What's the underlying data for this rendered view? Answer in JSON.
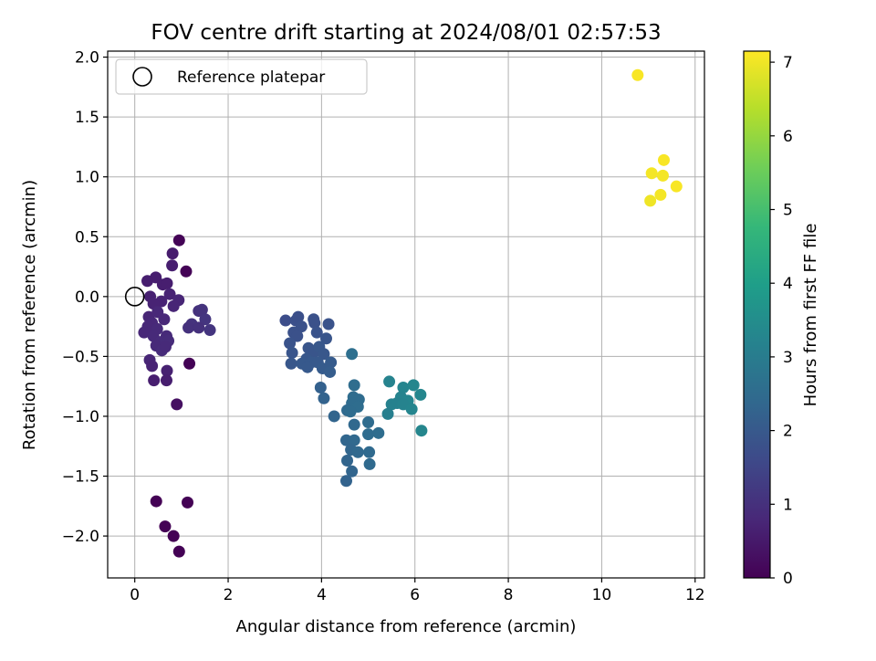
{
  "chart_data": {
    "type": "scatter",
    "title": "FOV centre drift starting at 2024/08/01 02:57:53",
    "xlabel": "Angular distance from reference (arcmin)",
    "ylabel": "Rotation from reference (arcmin)",
    "xlim": [
      -0.58,
      12.2
    ],
    "ylim": [
      -2.35,
      2.05
    ],
    "xticks": [
      0,
      2,
      4,
      6,
      8,
      10,
      12
    ],
    "xtick_labels": [
      "0",
      "2",
      "4",
      "6",
      "8",
      "10",
      "12"
    ],
    "yticks": [
      -2.0,
      -1.5,
      -1.0,
      -0.5,
      0.0,
      0.5,
      1.0,
      1.5,
      2.0
    ],
    "ytick_labels": [
      "−2.0",
      "−1.5",
      "−1.0",
      "−0.5",
      "0.0",
      "0.5",
      "1.0",
      "1.5",
      "2.0"
    ],
    "grid": true,
    "legend": {
      "placement": "upper-left",
      "entries": [
        "Reference platepar"
      ]
    },
    "reference_point": {
      "name": "Reference platepar",
      "x": 0.0,
      "y": 0.0,
      "marker": "open-circle"
    },
    "colorbar": {
      "label": "Hours from first FF file",
      "range": [
        0,
        7.15
      ],
      "ticks": [
        0,
        1,
        2,
        3,
        4,
        5,
        6,
        7
      ],
      "tick_labels": [
        "0",
        "1",
        "2",
        "3",
        "4",
        "5",
        "6",
        "7"
      ],
      "colormap": "viridis",
      "colormap_stops": [
        "#440154",
        "#482878",
        "#3e4989",
        "#31688e",
        "#26828e",
        "#1f9e89",
        "#35b779",
        "#6ece58",
        "#b5de2b",
        "#fde725"
      ]
    },
    "series": [
      {
        "points": [
          {
            "x": 0.95,
            "y": 0.47,
            "h": 0.05
          },
          {
            "x": 1.1,
            "y": 0.21,
            "h": 0.05
          },
          {
            "x": 1.17,
            "y": -0.56,
            "h": 0.05
          },
          {
            "x": 0.46,
            "y": -1.71,
            "h": 0.02
          },
          {
            "x": 1.13,
            "y": -1.72,
            "h": 0.02
          },
          {
            "x": 0.65,
            "y": -1.92,
            "h": 0.03
          },
          {
            "x": 0.83,
            "y": -2.0,
            "h": 0.03
          },
          {
            "x": 0.95,
            "y": -2.13,
            "h": 0.02
          },
          {
            "x": 0.9,
            "y": -0.9,
            "h": 0.3
          },
          {
            "x": 0.81,
            "y": 0.36,
            "h": 0.55
          },
          {
            "x": 0.8,
            "y": 0.26,
            "h": 0.6
          },
          {
            "x": 0.45,
            "y": 0.16,
            "h": 0.6
          },
          {
            "x": 0.27,
            "y": 0.13,
            "h": 0.6
          },
          {
            "x": 0.6,
            "y": 0.1,
            "h": 0.6
          },
          {
            "x": 0.69,
            "y": 0.11,
            "h": 0.6
          },
          {
            "x": 0.33,
            "y": 0.0,
            "h": 0.65
          },
          {
            "x": 0.75,
            "y": 0.02,
            "h": 0.7
          },
          {
            "x": 0.94,
            "y": -0.03,
            "h": 0.75
          },
          {
            "x": 0.57,
            "y": -0.04,
            "h": 0.7
          },
          {
            "x": 0.4,
            "y": -0.06,
            "h": 0.7
          },
          {
            "x": 0.83,
            "y": -0.08,
            "h": 0.75
          },
          {
            "x": 0.3,
            "y": -0.17,
            "h": 0.75
          },
          {
            "x": 0.49,
            "y": -0.13,
            "h": 0.8
          },
          {
            "x": 0.63,
            "y": -0.19,
            "h": 0.8
          },
          {
            "x": 0.37,
            "y": -0.22,
            "h": 0.8
          },
          {
            "x": 0.28,
            "y": -0.25,
            "h": 0.8
          },
          {
            "x": 0.48,
            "y": -0.27,
            "h": 0.85
          },
          {
            "x": 0.2,
            "y": -0.3,
            "h": 0.8
          },
          {
            "x": 0.4,
            "y": -0.33,
            "h": 0.85
          },
          {
            "x": 0.68,
            "y": -0.33,
            "h": 0.85
          },
          {
            "x": 0.55,
            "y": -0.38,
            "h": 0.9
          },
          {
            "x": 0.72,
            "y": -0.37,
            "h": 0.9
          },
          {
            "x": 0.46,
            "y": -0.41,
            "h": 0.85
          },
          {
            "x": 0.58,
            "y": -0.45,
            "h": 0.9
          },
          {
            "x": 0.66,
            "y": -0.42,
            "h": 0.85
          },
          {
            "x": 0.32,
            "y": -0.53,
            "h": 0.75
          },
          {
            "x": 0.37,
            "y": -0.58,
            "h": 0.7
          },
          {
            "x": 0.69,
            "y": -0.62,
            "h": 0.65
          },
          {
            "x": 0.41,
            "y": -0.7,
            "h": 0.6
          },
          {
            "x": 0.68,
            "y": -0.7,
            "h": 0.6
          },
          {
            "x": 1.37,
            "y": -0.12,
            "h": 1.0
          },
          {
            "x": 1.44,
            "y": -0.11,
            "h": 1.05
          },
          {
            "x": 1.51,
            "y": -0.19,
            "h": 1.1
          },
          {
            "x": 1.22,
            "y": -0.23,
            "h": 1.05
          },
          {
            "x": 1.15,
            "y": -0.26,
            "h": 1.0
          },
          {
            "x": 1.37,
            "y": -0.26,
            "h": 1.0
          },
          {
            "x": 1.61,
            "y": -0.28,
            "h": 1.1
          },
          {
            "x": 3.23,
            "y": -0.2,
            "h": 1.7
          },
          {
            "x": 3.45,
            "y": -0.2,
            "h": 1.75
          },
          {
            "x": 3.5,
            "y": -0.17,
            "h": 1.75
          },
          {
            "x": 3.83,
            "y": -0.19,
            "h": 1.8
          },
          {
            "x": 3.85,
            "y": -0.22,
            "h": 1.8
          },
          {
            "x": 4.15,
            "y": -0.23,
            "h": 1.85
          },
          {
            "x": 3.57,
            "y": -0.25,
            "h": 1.8
          },
          {
            "x": 3.4,
            "y": -0.3,
            "h": 1.8
          },
          {
            "x": 3.48,
            "y": -0.33,
            "h": 1.8
          },
          {
            "x": 3.9,
            "y": -0.3,
            "h": 1.85
          },
          {
            "x": 4.1,
            "y": -0.35,
            "h": 1.9
          },
          {
            "x": 3.32,
            "y": -0.39,
            "h": 1.85
          },
          {
            "x": 3.72,
            "y": -0.43,
            "h": 1.9
          },
          {
            "x": 3.85,
            "y": -0.46,
            "h": 1.9
          },
          {
            "x": 3.95,
            "y": -0.42,
            "h": 1.95
          },
          {
            "x": 4.05,
            "y": -0.48,
            "h": 1.95
          },
          {
            "x": 3.37,
            "y": -0.47,
            "h": 1.9
          },
          {
            "x": 3.68,
            "y": -0.52,
            "h": 1.95
          },
          {
            "x": 3.78,
            "y": -0.55,
            "h": 2.0
          },
          {
            "x": 3.92,
            "y": -0.55,
            "h": 2.0
          },
          {
            "x": 4.2,
            "y": -0.55,
            "h": 2.05
          },
          {
            "x": 3.35,
            "y": -0.56,
            "h": 1.95
          },
          {
            "x": 3.58,
            "y": -0.56,
            "h": 2.0
          },
          {
            "x": 3.7,
            "y": -0.59,
            "h": 2.0
          },
          {
            "x": 4.02,
            "y": -0.6,
            "h": 2.05
          },
          {
            "x": 4.18,
            "y": -0.63,
            "h": 2.1
          },
          {
            "x": 3.98,
            "y": -0.76,
            "h": 2.2
          },
          {
            "x": 4.05,
            "y": -0.85,
            "h": 2.25
          },
          {
            "x": 4.65,
            "y": -0.48,
            "h": 2.6
          },
          {
            "x": 4.7,
            "y": -0.74,
            "h": 2.55
          },
          {
            "x": 4.68,
            "y": -0.84,
            "h": 2.5
          },
          {
            "x": 4.8,
            "y": -0.86,
            "h": 2.5
          },
          {
            "x": 4.65,
            "y": -0.89,
            "h": 2.5
          },
          {
            "x": 4.78,
            "y": -0.92,
            "h": 2.55
          },
          {
            "x": 4.55,
            "y": -0.95,
            "h": 2.45
          },
          {
            "x": 4.62,
            "y": -0.96,
            "h": 2.5
          },
          {
            "x": 4.27,
            "y": -1.0,
            "h": 2.3
          },
          {
            "x": 4.7,
            "y": -1.07,
            "h": 2.4
          },
          {
            "x": 5.0,
            "y": -1.05,
            "h": 2.5
          },
          {
            "x": 5.22,
            "y": -1.14,
            "h": 2.55
          },
          {
            "x": 5.0,
            "y": -1.15,
            "h": 2.5
          },
          {
            "x": 4.53,
            "y": -1.2,
            "h": 2.35
          },
          {
            "x": 4.7,
            "y": -1.2,
            "h": 2.4
          },
          {
            "x": 4.63,
            "y": -1.28,
            "h": 2.35
          },
          {
            "x": 4.78,
            "y": -1.3,
            "h": 2.4
          },
          {
            "x": 5.02,
            "y": -1.3,
            "h": 2.45
          },
          {
            "x": 4.55,
            "y": -1.37,
            "h": 2.3
          },
          {
            "x": 5.03,
            "y": -1.4,
            "h": 2.45
          },
          {
            "x": 4.65,
            "y": -1.46,
            "h": 2.3
          },
          {
            "x": 4.53,
            "y": -1.54,
            "h": 2.25
          },
          {
            "x": 5.45,
            "y": -0.71,
            "h": 3.2
          },
          {
            "x": 5.75,
            "y": -0.76,
            "h": 3.25
          },
          {
            "x": 5.97,
            "y": -0.74,
            "h": 3.3
          },
          {
            "x": 6.12,
            "y": -0.82,
            "h": 3.3
          },
          {
            "x": 5.7,
            "y": -0.84,
            "h": 3.2
          },
          {
            "x": 5.85,
            "y": -0.87,
            "h": 3.25
          },
          {
            "x": 5.5,
            "y": -0.9,
            "h": 3.15
          },
          {
            "x": 5.62,
            "y": -0.89,
            "h": 3.15
          },
          {
            "x": 5.75,
            "y": -0.9,
            "h": 3.2
          },
          {
            "x": 5.93,
            "y": -0.94,
            "h": 3.25
          },
          {
            "x": 5.42,
            "y": -0.98,
            "h": 3.1
          },
          {
            "x": 6.14,
            "y": -1.12,
            "h": 3.3
          },
          {
            "x": 10.77,
            "y": 1.85,
            "h": 7.1
          },
          {
            "x": 11.33,
            "y": 1.14,
            "h": 7.1
          },
          {
            "x": 11.07,
            "y": 1.03,
            "h": 7.05
          },
          {
            "x": 11.31,
            "y": 1.01,
            "h": 7.05
          },
          {
            "x": 11.6,
            "y": 0.92,
            "h": 7.1
          },
          {
            "x": 11.26,
            "y": 0.85,
            "h": 7.05
          },
          {
            "x": 11.04,
            "y": 0.8,
            "h": 7.0
          }
        ]
      }
    ]
  }
}
